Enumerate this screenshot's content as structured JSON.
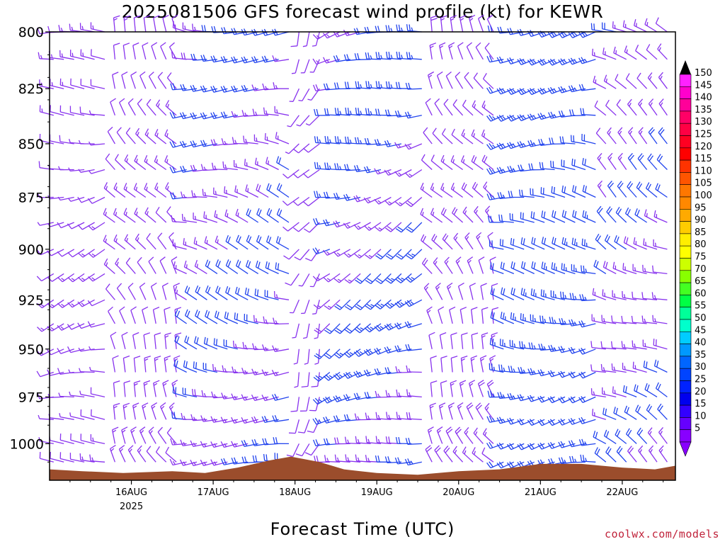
{
  "chart_data": {
    "type": "wind-barb time-height",
    "title": "2025081506 GFS forecast wind profile (kt) for KEWR",
    "xlabel": "Forecast Time (UTC)",
    "credit": "coolwx.com/models",
    "y_ticks": [
      800,
      825,
      850,
      875,
      900,
      925,
      950,
      975,
      1000
    ],
    "ylim": [
      1020,
      800
    ],
    "y_scale": "log",
    "x_ticks": [
      {
        "label": "16AUG",
        "sub": "2025",
        "day": 1
      },
      {
        "label": "17AUG",
        "sub": "",
        "day": 2
      },
      {
        "label": "18AUG",
        "sub": "",
        "day": 3
      },
      {
        "label": "19AUG",
        "sub": "",
        "day": 4
      },
      {
        "label": "20AUG",
        "sub": "",
        "day": 5
      },
      {
        "label": "21AUG",
        "sub": "",
        "day": 6
      },
      {
        "label": "22AUG",
        "sub": "",
        "day": 7
      }
    ],
    "xlim_days": [
      0.0,
      7.65
    ],
    "barb_levels": [
      800,
      812,
      825,
      837,
      850,
      862,
      875,
      887,
      900,
      912,
      925,
      937,
      950,
      962,
      975,
      987,
      1000,
      1010
    ],
    "barb_interval_hours": 3,
    "wind_regimes": [
      {
        "from_day": 0.0,
        "to_day": 0.8,
        "dir_deg": 260,
        "speed_kt": 10
      },
      {
        "from_day": 0.8,
        "to_day": 1.6,
        "dir_deg": 330,
        "speed_kt": 12
      },
      {
        "from_day": 1.6,
        "to_day": 3.0,
        "dir_deg": 280,
        "speed_kt": 18
      },
      {
        "from_day": 3.0,
        "to_day": 3.4,
        "dir_deg": 210,
        "speed_kt": 8
      },
      {
        "from_day": 3.4,
        "to_day": 4.6,
        "dir_deg": 250,
        "speed_kt": 20
      },
      {
        "from_day": 4.6,
        "to_day": 5.5,
        "dir_deg": 330,
        "speed_kt": 14
      },
      {
        "from_day": 5.5,
        "to_day": 6.7,
        "dir_deg": 270,
        "speed_kt": 22
      },
      {
        "from_day": 6.7,
        "to_day": 7.65,
        "dir_deg": 300,
        "speed_kt": 16
      }
    ],
    "surface_pressure": [
      {
        "day": 0.0,
        "hPa": 1014
      },
      {
        "day": 0.4,
        "hPa": 1015
      },
      {
        "day": 0.9,
        "hPa": 1016
      },
      {
        "day": 1.5,
        "hPa": 1015
      },
      {
        "day": 1.9,
        "hPa": 1016
      },
      {
        "day": 2.3,
        "hPa": 1013
      },
      {
        "day": 2.7,
        "hPa": 1009
      },
      {
        "day": 2.95,
        "hPa": 1007
      },
      {
        "day": 3.3,
        "hPa": 1010
      },
      {
        "day": 3.6,
        "hPa": 1014
      },
      {
        "day": 4.0,
        "hPa": 1016
      },
      {
        "day": 4.5,
        "hPa": 1017
      },
      {
        "day": 5.0,
        "hPa": 1015
      },
      {
        "day": 5.5,
        "hPa": 1014
      },
      {
        "day": 6.0,
        "hPa": 1011
      },
      {
        "day": 6.5,
        "hPa": 1011
      },
      {
        "day": 7.0,
        "hPa": 1013
      },
      {
        "day": 7.4,
        "hPa": 1014
      },
      {
        "day": 7.65,
        "hPa": 1012
      }
    ],
    "colorbar": {
      "labels": [
        "150",
        "145",
        "140",
        "135",
        "130",
        "125",
        "120",
        "115",
        "110",
        "105",
        "100",
        "95",
        "90",
        "85",
        "80",
        "75",
        "70",
        "65",
        "60",
        "55",
        "50",
        "45",
        "40",
        "35",
        "30",
        "25",
        "20",
        "15",
        "10",
        "5"
      ],
      "colors": [
        "#ff22ff",
        "#ff00cc",
        "#ff0099",
        "#ff0066",
        "#ff0044",
        "#ff0022",
        "#ff0000",
        "#ff3300",
        "#ff5500",
        "#ff7700",
        "#ff8800",
        "#ffaa00",
        "#ffcc00",
        "#ffee00",
        "#ffff00",
        "#ccff00",
        "#88ff00",
        "#44ff22",
        "#00ff44",
        "#00ff99",
        "#00ffcc",
        "#00ccff",
        "#0099ff",
        "#0066ff",
        "#0044ff",
        "#0022ff",
        "#0000ee",
        "#3300ff",
        "#6600ff",
        "#8800ff"
      ]
    },
    "colors": {
      "barb_slow": "#8833ee",
      "barb_fast": "#2244ee",
      "terrain": "#9b4d2c",
      "frame": "#000000"
    }
  }
}
